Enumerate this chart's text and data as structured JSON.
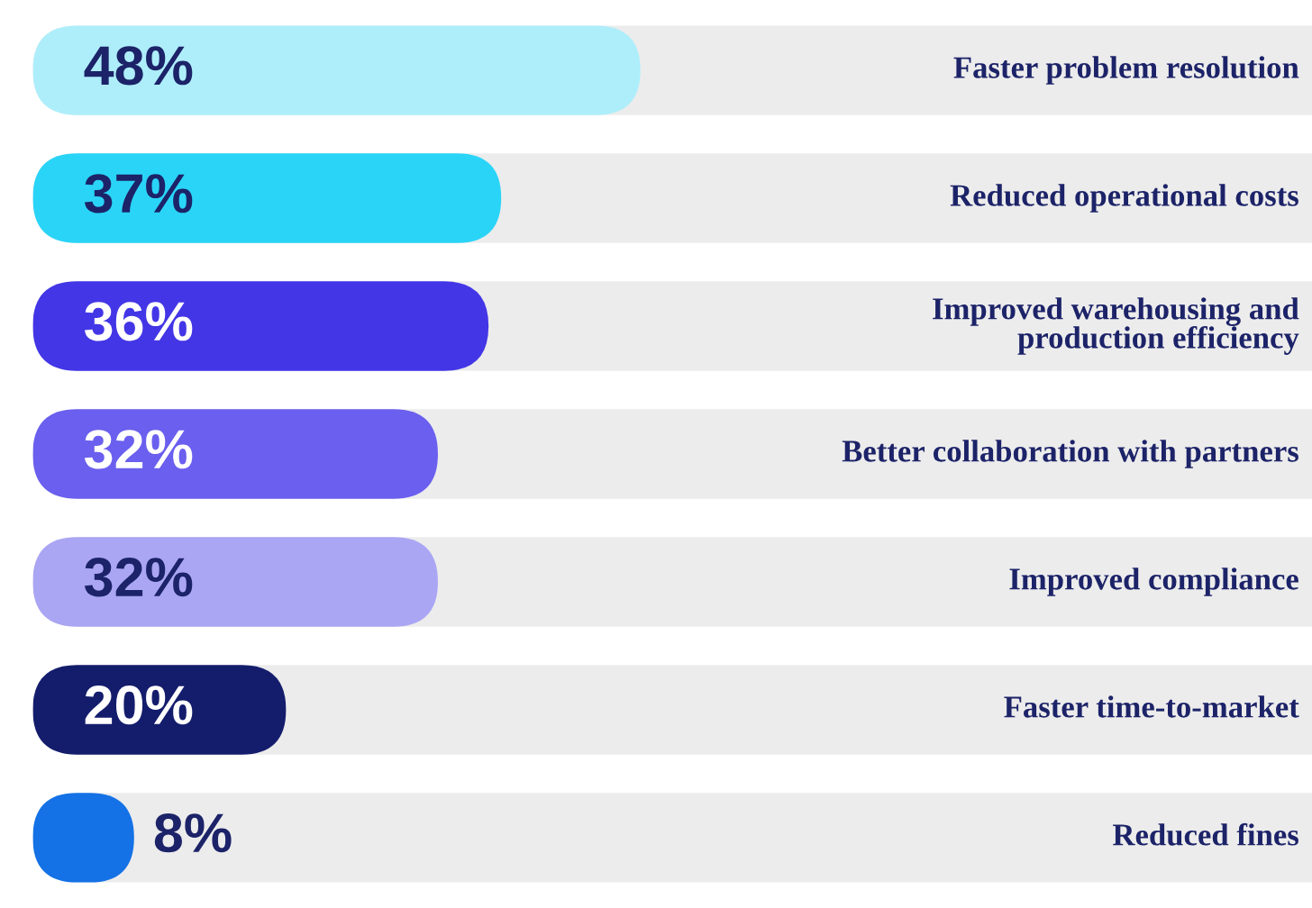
{
  "chart_data": {
    "type": "bar",
    "orientation": "horizontal",
    "categories": [
      "Faster problem resolution",
      "Reduced operational costs",
      "Improved warehousing and\nproduction efficiency",
      "Better collaboration with partners",
      "Improved compliance",
      "Faster time-to-market",
      "Reduced fines"
    ],
    "values": [
      48,
      37,
      36,
      32,
      32,
      20,
      8
    ],
    "colors": [
      "#aeeefb",
      "#2ad4f7",
      "#4336e6",
      "#6a5fee",
      "#aaa6f4",
      "#141d6c",
      "#1471e6"
    ],
    "value_labels": [
      "48%",
      "37%",
      "36%",
      "32%",
      "32%",
      "20%",
      "8%"
    ],
    "data_labels": true
  }
}
